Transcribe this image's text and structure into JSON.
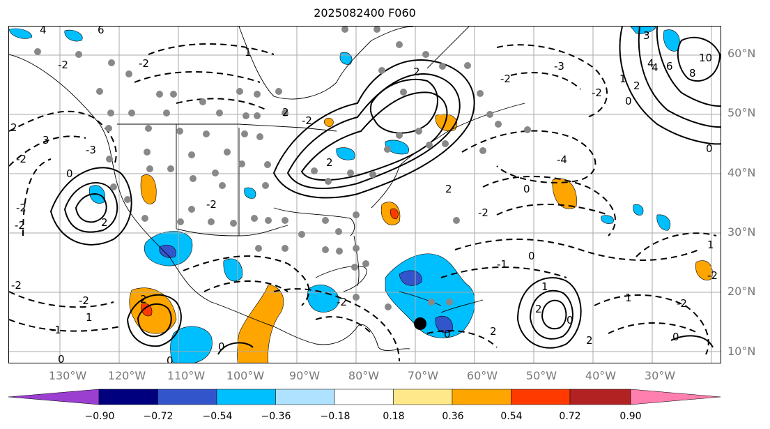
{
  "title": "2025082400 F060",
  "lat_labels": [
    "60°N",
    "50°N",
    "40°N",
    "30°N",
    "20°N",
    "10°N"
  ],
  "lon_labels": [
    "130°W",
    "120°W",
    "110°W",
    "100°W",
    "90°W",
    "80°W",
    "70°W",
    "60°W",
    "50°W",
    "40°W",
    "30°W"
  ],
  "colorbar": {
    "ticks": [
      "−0.90",
      "−0.72",
      "−0.54",
      "−0.36",
      "−0.18",
      "0.18",
      "0.36",
      "0.54",
      "0.72",
      "0.90"
    ],
    "colors": [
      "#9b3fd1",
      "#00007f",
      "#3355cc",
      "#00bfff",
      "#aee2ff",
      "#ffffff",
      "#ffe88a",
      "#ffa500",
      "#ff3a00",
      "#b22222",
      "#ff7fae"
    ]
  },
  "contour_labels": [
    "4",
    "6",
    "-2",
    "-2",
    "2",
    "1",
    "-2",
    "2",
    "-2",
    "3",
    "-3",
    "-2",
    "0",
    "2",
    "-2",
    "2",
    "-4",
    "0",
    "2",
    "-2",
    "-2",
    "2",
    "0",
    "-2",
    "3",
    "10",
    "8",
    "6",
    "4",
    "2",
    "1",
    "0",
    "4",
    "1",
    "2",
    "-3",
    "-2",
    "-2",
    "-2",
    "-1",
    "-2",
    "0",
    "1",
    "1",
    "0",
    "2",
    "-2",
    "-1",
    "2",
    "0",
    "1",
    "-2",
    "0",
    "0",
    "2",
    "0",
    "0"
  ],
  "marker": "storm-center"
}
